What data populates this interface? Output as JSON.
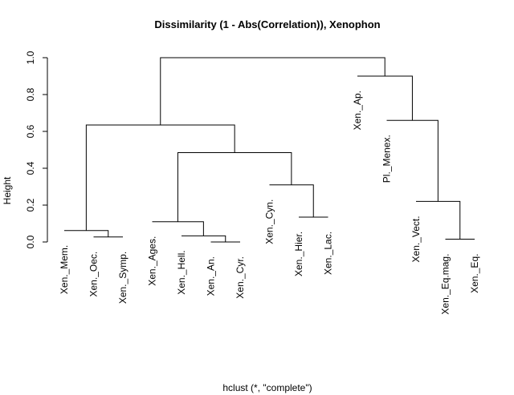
{
  "chart_data": {
    "type": "dendrogram",
    "title": "Dissimilarity (1 - Abs(Correlation)), Xenophon",
    "xlabel": "hclust (*, \"complete\")",
    "ylabel": "Height",
    "ylim": [
      0,
      1
    ],
    "yticks": [
      "0.0",
      "0.2",
      "0.4",
      "0.6",
      "0.8",
      "1.0"
    ],
    "ytick_values": [
      0,
      0.2,
      0.4,
      0.6,
      0.8,
      1.0
    ],
    "leaves": [
      {
        "label": "Xen._Mem.",
        "height": 0.062
      },
      {
        "label": "Xen._Oec.",
        "height": 0.027
      },
      {
        "label": "Xen._Symp.",
        "height": 0.027
      },
      {
        "label": "Xen._Ages.",
        "height": 0.11
      },
      {
        "label": "Xen._Hell.",
        "height": 0.033
      },
      {
        "label": "Xen._An.",
        "height": 0.0
      },
      {
        "label": "Xen._Cyr.",
        "height": 0.0
      },
      {
        "label": "Xen._Cyn.",
        "height": 0.31
      },
      {
        "label": "Xen._Hier.",
        "height": 0.135
      },
      {
        "label": "Xen._Lac.",
        "height": 0.135
      },
      {
        "label": "Xen._Ap.",
        "height": 0.9
      },
      {
        "label": "Pl._Menex.",
        "height": 0.66
      },
      {
        "label": "Xen._Vect.",
        "height": 0.22
      },
      {
        "label": "Xen._Eq.mag.",
        "height": 0.015
      },
      {
        "label": "Xen._Eq.",
        "height": 0.015
      }
    ],
    "merges": [
      {
        "left": "leaf:5",
        "right": "leaf:6",
        "height": 0.0
      },
      {
        "left": "leaf:13",
        "right": "leaf:14",
        "height": 0.015
      },
      {
        "left": "leaf:1",
        "right": "leaf:2",
        "height": 0.027
      },
      {
        "left": "leaf:4",
        "right": "node:0",
        "height": 0.033
      },
      {
        "left": "leaf:0",
        "right": "node:2",
        "height": 0.062
      },
      {
        "left": "leaf:3",
        "right": "node:3",
        "height": 0.11
      },
      {
        "left": "leaf:8",
        "right": "leaf:9",
        "height": 0.135
      },
      {
        "left": "leaf:12",
        "right": "node:1",
        "height": 0.22
      },
      {
        "left": "leaf:7",
        "right": "node:6",
        "height": 0.31
      },
      {
        "left": "node:5",
        "right": "node:8",
        "height": 0.485
      },
      {
        "left": "node:4",
        "right": "node:9",
        "height": 0.635
      },
      {
        "left": "leaf:11",
        "right": "node:7",
        "height": 0.66
      },
      {
        "left": "leaf:10",
        "right": "node:11",
        "height": 0.9
      },
      {
        "left": "node:10",
        "right": "node:12",
        "height": 1.0
      }
    ]
  }
}
